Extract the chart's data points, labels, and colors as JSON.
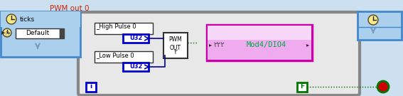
{
  "title": "PWM out 0",
  "title_color": "#cc2200",
  "bg_color": "#cce0f0",
  "left_panel_bg": "#aad0ee",
  "left_panel_border": "#4488cc",
  "inner_bg_color": "#e8e8e8",
  "inner_border_color": "#888888",
  "right_panel_bg": "#aad0ee",
  "right_panel_border": "#4488cc",
  "ticks_label": "ticks",
  "default_label": "Default",
  "high_pulse_label": "_High Pulse 0",
  "low_pulse_label": "_Low Pulse 0",
  "u32_label": "U32",
  "pwm_out_label": "PWM\nOUT",
  "mod_label": "Mod4/DIO4",
  "f_label": "F",
  "info_label": "i",
  "u32_box_color": "#0000cc",
  "pwm_wave_color": "#005500",
  "mod_box_bg": "#f0aaee",
  "mod_box_top": "#f8ccf8",
  "mod_box_border": "#cc00aa",
  "mod_text_color": "#00aa44",
  "wire_color": "#0000aa",
  "dashed_wire_color": "#006600",
  "f_box_color": "#007700",
  "stop_circle_color": "#cc0000",
  "stop_border_color": "#007700",
  "clock_face": "#f8e880",
  "clock_border": "#444444"
}
